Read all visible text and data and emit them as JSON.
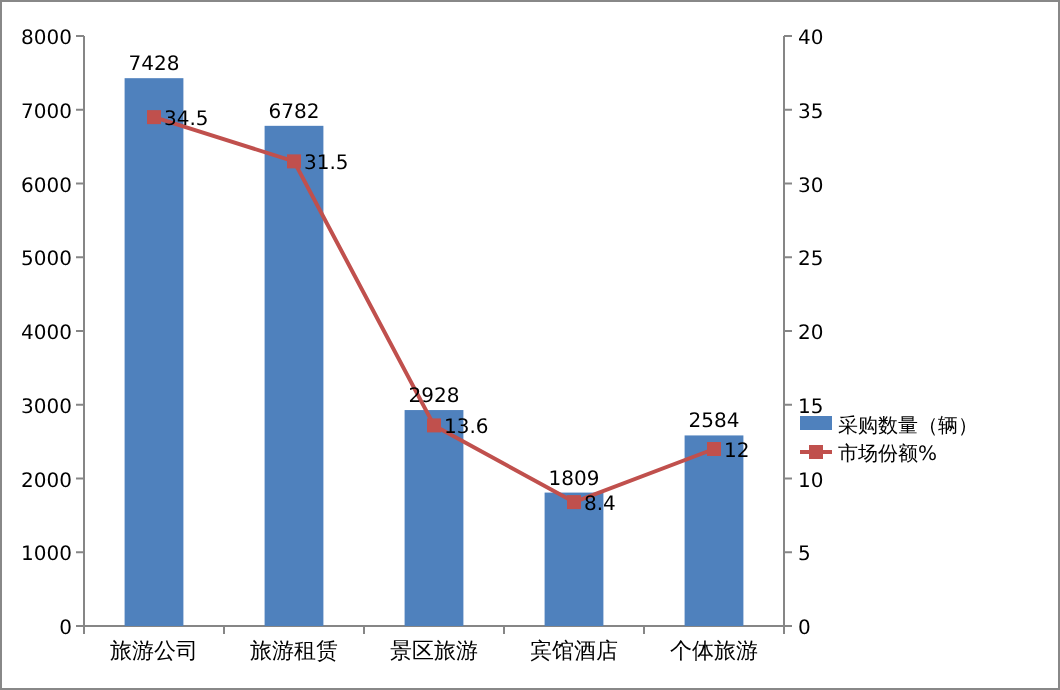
{
  "chart_data": {
    "type": "bar",
    "categories": [
      "旅游公司",
      "旅游租赁",
      "景区旅游",
      "宾馆酒店",
      "个体旅游"
    ],
    "series": [
      {
        "name": "采购数量（辆）",
        "color": "#4f81bd",
        "values": [
          7428,
          6782,
          2928,
          1809,
          2584
        ]
      },
      {
        "name": "市场份额%",
        "type": "line",
        "axis": "y2",
        "color": "#c0504d",
        "values": [
          34.5,
          31.5,
          13.6,
          8.4,
          12
        ]
      }
    ],
    "ylim": [
      0,
      8000
    ],
    "yticks": [
      0,
      1000,
      2000,
      3000,
      4000,
      5000,
      6000,
      7000,
      8000
    ],
    "y2lim": [
      0,
      40
    ],
    "y2ticks": [
      0,
      5,
      10,
      15,
      20,
      25,
      30,
      35,
      40
    ],
    "data_labels": true,
    "legend": "right",
    "grid": false,
    "marker": "square"
  }
}
